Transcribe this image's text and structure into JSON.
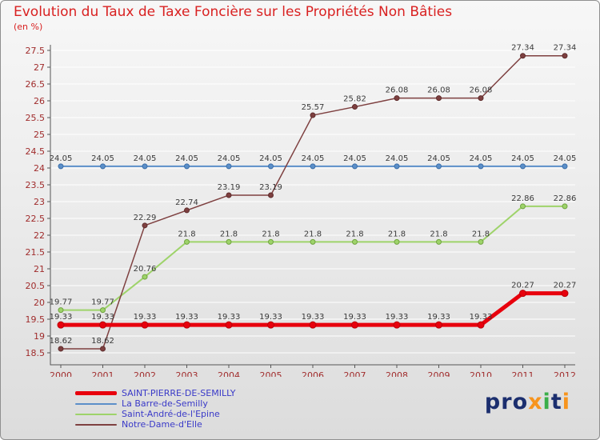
{
  "header": {
    "title": "Evolution du Taux de Taxe Foncière sur les Propriétés Non Bâties",
    "subtitle": "(en %)"
  },
  "chart_data": {
    "type": "line",
    "x": [
      2000,
      2001,
      2002,
      2003,
      2004,
      2005,
      2006,
      2007,
      2008,
      2009,
      2010,
      2011,
      2012
    ],
    "ylim": [
      18.5,
      27.5
    ],
    "ytick_step": 0.5,
    "grid": true,
    "legend_position": "bottom-left",
    "tick_label_color": "#a02c2c",
    "value_label_color": "#3a3a3a",
    "axis_color": "#555555",
    "grid_color": "#ffffff",
    "series": [
      {
        "name": "SAINT-PIERRE-DE-SEMILLY",
        "color": "#e8000d",
        "marker_stroke": "#b80009",
        "line_width": 5,
        "marker_radius": 4,
        "values": [
          19.33,
          19.33,
          19.33,
          19.33,
          19.33,
          19.33,
          19.33,
          19.33,
          19.33,
          19.33,
          19.33,
          20.27,
          20.27
        ]
      },
      {
        "name": "La Barre-de-Semilly",
        "color": "#5b8fc9",
        "marker_stroke": "#3b6ea8",
        "line_width": 2,
        "marker_radius": 3,
        "values": [
          24.05,
          24.05,
          24.05,
          24.05,
          24.05,
          24.05,
          24.05,
          24.05,
          24.05,
          24.05,
          24.05,
          24.05,
          24.05
        ]
      },
      {
        "name": "Saint-André-de-l'Epine",
        "color": "#9ed36a",
        "marker_stroke": "#6fa33f",
        "line_width": 2,
        "marker_radius": 3,
        "values": [
          19.77,
          19.77,
          20.76,
          21.8,
          21.8,
          21.8,
          21.8,
          21.8,
          21.8,
          21.8,
          21.8,
          22.86,
          22.86
        ]
      },
      {
        "name": "Notre-Dame-d'Elle",
        "color": "#7e4040",
        "marker_stroke": "#5e2c2c",
        "line_width": 1.5,
        "marker_radius": 3,
        "values": [
          18.62,
          18.62,
          22.29,
          22.74,
          23.19,
          23.19,
          25.57,
          25.82,
          26.08,
          26.08,
          26.08,
          27.34,
          27.34
        ]
      }
    ]
  },
  "legend": {
    "items": [
      "SAINT-PIERRE-DE-SEMILLY",
      "La Barre-de-Semilly",
      "Saint-André-de-l'Epine",
      "Notre-Dame-d'Elle"
    ]
  },
  "logo": {
    "letters": [
      {
        "ch": "p",
        "color": "#1b2e6e"
      },
      {
        "ch": "r",
        "color": "#1b2e6e"
      },
      {
        "ch": "o",
        "color": "#1b2e6e"
      },
      {
        "ch": "x",
        "color": "#f7941d"
      },
      {
        "ch": "i",
        "color": "#3aae49"
      },
      {
        "ch": "t",
        "color": "#1b2e6e"
      },
      {
        "ch": "i",
        "color": "#f7941d"
      }
    ]
  }
}
